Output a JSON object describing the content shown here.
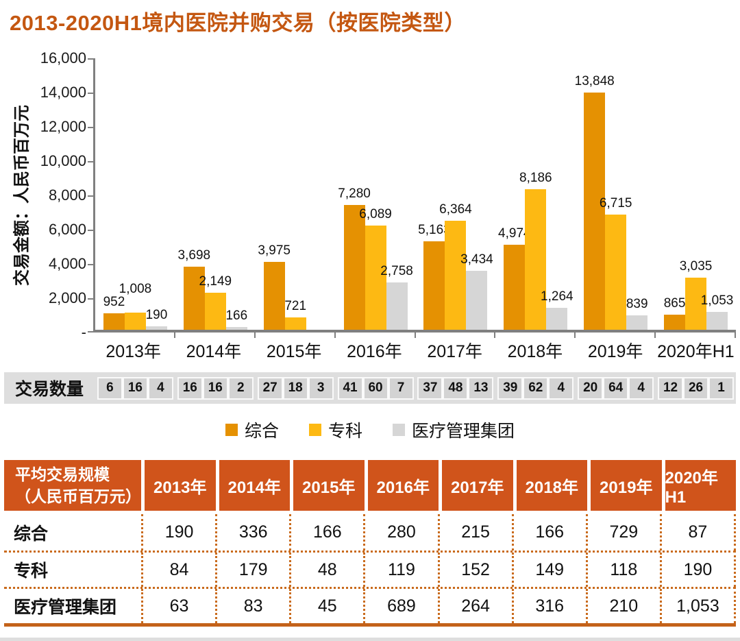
{
  "title": "2013-2020H1境内医院并购交易（按医院类型）",
  "colors": {
    "title": "#c45711",
    "axis": "#7f7f7f",
    "strip_bg": "#dedede",
    "strip_cell_bg": "#d3d3d3",
    "table_header_bg": "#d0541b",
    "table_dotted_border": "#c96a1b",
    "table_solid_border": "#c4621a"
  },
  "chart_data": {
    "type": "bar",
    "title": "2013-2020H1境内医院并购交易（按医院类型）",
    "xlabel": "",
    "ylabel": "交易金额：人民币百万元",
    "ylim": [
      0,
      16000
    ],
    "ytick_step": 2000,
    "yticks": [
      "16,000",
      "14,000",
      "12,000",
      "10,000",
      "8,000",
      "6,000",
      "4,000",
      "2,000",
      "-"
    ],
    "grid": false,
    "legend_position": "bottom",
    "categories": [
      "2013年",
      "2014年",
      "2015年",
      "2016年",
      "2017年",
      "2018年",
      "2019年",
      "2020年H1"
    ],
    "series": [
      {
        "name": "综合",
        "color": "#e59102",
        "values": [
          952,
          3698,
          3975,
          7280,
          5163,
          4974,
          13848,
          865
        ],
        "labels": [
          "952",
          "3,698",
          "3,975",
          "7,280",
          "5,163",
          "4,974",
          "13,848",
          "865"
        ]
      },
      {
        "name": "专科",
        "color": "#fdb913",
        "values": [
          1008,
          2149,
          721,
          6089,
          6364,
          8186,
          6715,
          3035
        ],
        "labels": [
          "1,008",
          "2,149",
          "721",
          "6,089",
          "6,364",
          "8,186",
          "6,715",
          "3,035"
        ]
      },
      {
        "name": "医疗管理集团",
        "color": "#d6d6d6",
        "values": [
          190,
          166,
          null,
          2758,
          3434,
          1264,
          839,
          1053
        ],
        "labels": [
          "190",
          "166",
          null,
          "2,758",
          "3,434",
          "1,264",
          "839",
          "1,053"
        ]
      }
    ]
  },
  "counts": {
    "label": "交易数量",
    "groups": [
      [
        "6",
        "16",
        "4"
      ],
      [
        "16",
        "16",
        "2"
      ],
      [
        "27",
        "18",
        "3"
      ],
      [
        "41",
        "60",
        "7"
      ],
      [
        "37",
        "48",
        "13"
      ],
      [
        "39",
        "62",
        "4"
      ],
      [
        "20",
        "64",
        "4"
      ],
      [
        "12",
        "26",
        "1"
      ]
    ]
  },
  "legend": [
    {
      "label": "综合",
      "color": "#e59102"
    },
    {
      "label": "专科",
      "color": "#fdb913"
    },
    {
      "label": "医疗管理集团",
      "color": "#d6d6d6"
    }
  ],
  "table": {
    "header_first": [
      "平均交易规模",
      "（人民币百万元）"
    ],
    "header_years": [
      "2013年",
      "2014年",
      "2015年",
      "2016年",
      "2017年",
      "2018年",
      "2019年",
      "2020年H1"
    ],
    "rows": [
      {
        "label": "综合",
        "values": [
          "190",
          "336",
          "166",
          "280",
          "215",
          "166",
          "729",
          "87"
        ]
      },
      {
        "label": "专科",
        "values": [
          "84",
          "179",
          "48",
          "119",
          "152",
          "149",
          "118",
          "190"
        ]
      },
      {
        "label": "医疗管理集团",
        "values": [
          "63",
          "83",
          "45",
          "689",
          "264",
          "316",
          "210",
          "1,053"
        ]
      }
    ]
  }
}
